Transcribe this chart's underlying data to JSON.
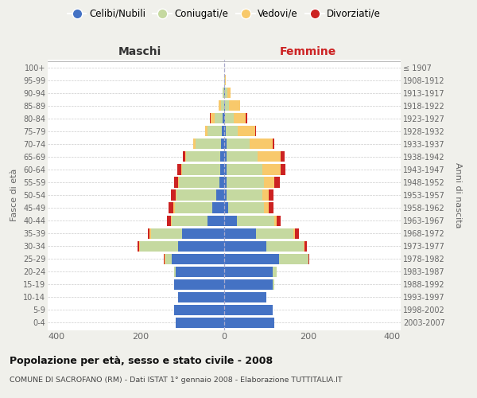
{
  "age_groups": [
    "0-4",
    "5-9",
    "10-14",
    "15-19",
    "20-24",
    "25-29",
    "30-34",
    "35-39",
    "40-44",
    "45-49",
    "50-54",
    "55-59",
    "60-64",
    "65-69",
    "70-74",
    "75-79",
    "80-84",
    "85-89",
    "90-94",
    "95-99",
    "100+"
  ],
  "birth_years": [
    "2003-2007",
    "1998-2002",
    "1993-1997",
    "1988-1992",
    "1983-1987",
    "1978-1982",
    "1973-1977",
    "1968-1972",
    "1963-1967",
    "1958-1962",
    "1953-1957",
    "1948-1952",
    "1943-1947",
    "1938-1942",
    "1933-1937",
    "1928-1932",
    "1923-1927",
    "1918-1922",
    "1913-1917",
    "1908-1912",
    "≤ 1907"
  ],
  "male": {
    "celibi": [
      115,
      120,
      110,
      120,
      115,
      125,
      110,
      100,
      40,
      28,
      18,
      12,
      10,
      10,
      8,
      5,
      3,
      0,
      0,
      0,
      0
    ],
    "coniugati": [
      0,
      0,
      0,
      0,
      5,
      15,
      90,
      75,
      85,
      90,
      95,
      95,
      90,
      80,
      60,
      35,
      20,
      8,
      3,
      0,
      0
    ],
    "vedovi": [
      0,
      0,
      0,
      0,
      0,
      2,
      2,
      2,
      2,
      3,
      2,
      2,
      3,
      3,
      5,
      5,
      10,
      5,
      0,
      0,
      0
    ],
    "divorziati": [
      0,
      0,
      0,
      0,
      0,
      2,
      5,
      5,
      10,
      12,
      12,
      10,
      8,
      5,
      0,
      0,
      2,
      0,
      0,
      0,
      0
    ]
  },
  "female": {
    "nubili": [
      120,
      115,
      100,
      115,
      115,
      130,
      100,
      75,
      30,
      10,
      5,
      5,
      5,
      5,
      5,
      3,
      2,
      2,
      2,
      0,
      0
    ],
    "coniugate": [
      0,
      0,
      0,
      5,
      10,
      70,
      90,
      90,
      90,
      85,
      85,
      90,
      85,
      75,
      55,
      30,
      20,
      10,
      5,
      2,
      0
    ],
    "vedove": [
      0,
      0,
      0,
      0,
      0,
      0,
      2,
      3,
      5,
      10,
      15,
      25,
      45,
      55,
      55,
      40,
      30,
      25,
      8,
      2,
      0
    ],
    "divorziate": [
      0,
      0,
      0,
      0,
      0,
      2,
      5,
      10,
      10,
      12,
      12,
      12,
      10,
      8,
      5,
      2,
      2,
      0,
      0,
      0,
      0
    ]
  },
  "colors": {
    "celibi_nubili": "#4472c4",
    "coniugati": "#c5d9a0",
    "vedovi": "#f8c96b",
    "divorziati": "#cc2222"
  },
  "xlim": 420,
  "xlabel_left": "Maschi",
  "xlabel_right": "Femmine",
  "ylabel_left": "Fasce di età",
  "ylabel_right": "Anni di nascita",
  "title": "Popolazione per età, sesso e stato civile - 2008",
  "subtitle": "COMUNE DI SACROFANO (RM) - Dati ISTAT 1° gennaio 2008 - Elaborazione TUTTITALIA.IT",
  "legend_labels": [
    "Celibi/Nubili",
    "Coniugati/e",
    "Vedovi/e",
    "Divorziati/e"
  ],
  "bg_color": "#f0f0eb",
  "plot_bg": "#ffffff"
}
